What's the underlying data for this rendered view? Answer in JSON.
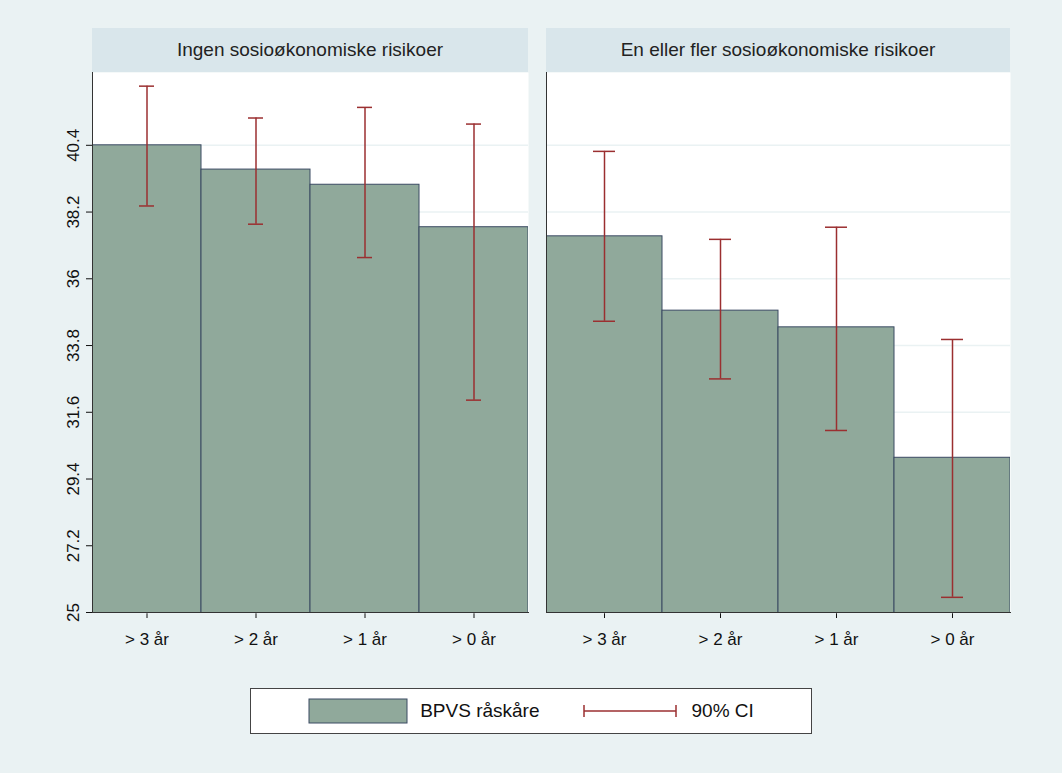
{
  "chart_data": [
    {
      "type": "bar",
      "title": "Ingen sosioøkonomiske risikoer",
      "categories": [
        "> 3 år",
        "> 2 år",
        "> 1 år",
        "> 0 år"
      ],
      "series": [
        {
          "name": "BPVS råskåre",
          "color": "#90a99b",
          "values": [
            40.4,
            39.6,
            39.1,
            37.7
          ]
        },
        {
          "name": "90% CI",
          "type": "errorbar",
          "color": "#9b2f30",
          "low": [
            38.4,
            37.8,
            36.7,
            32.0
          ],
          "high": [
            42.35,
            41.3,
            41.65,
            41.1
          ]
        }
      ],
      "ylim": [
        25,
        42.8
      ],
      "yticks": [
        25,
        27.2,
        29.4,
        31.6,
        33.8,
        36,
        38.2,
        40.4
      ],
      "grid": true
    },
    {
      "type": "bar",
      "title": "En eller fler sosioøkonomiske risikoer",
      "categories": [
        "> 3 år",
        "> 2 år",
        "> 1 år",
        "> 0 år"
      ],
      "series": [
        {
          "name": "BPVS råskåre",
          "color": "#90a99b",
          "values": [
            37.4,
            34.95,
            34.4,
            30.1
          ]
        },
        {
          "name": "90% CI",
          "type": "errorbar",
          "color": "#9b2f30",
          "low": [
            34.6,
            32.7,
            31.0,
            25.5
          ],
          "high": [
            40.2,
            37.3,
            37.7,
            34.0
          ]
        }
      ],
      "ylim": [
        25,
        42.8
      ],
      "yticks": [
        25,
        27.2,
        29.4,
        31.6,
        33.8,
        36,
        38.2,
        40.4
      ],
      "grid": true,
      "tick_labels": "x"
    }
  ]
}
